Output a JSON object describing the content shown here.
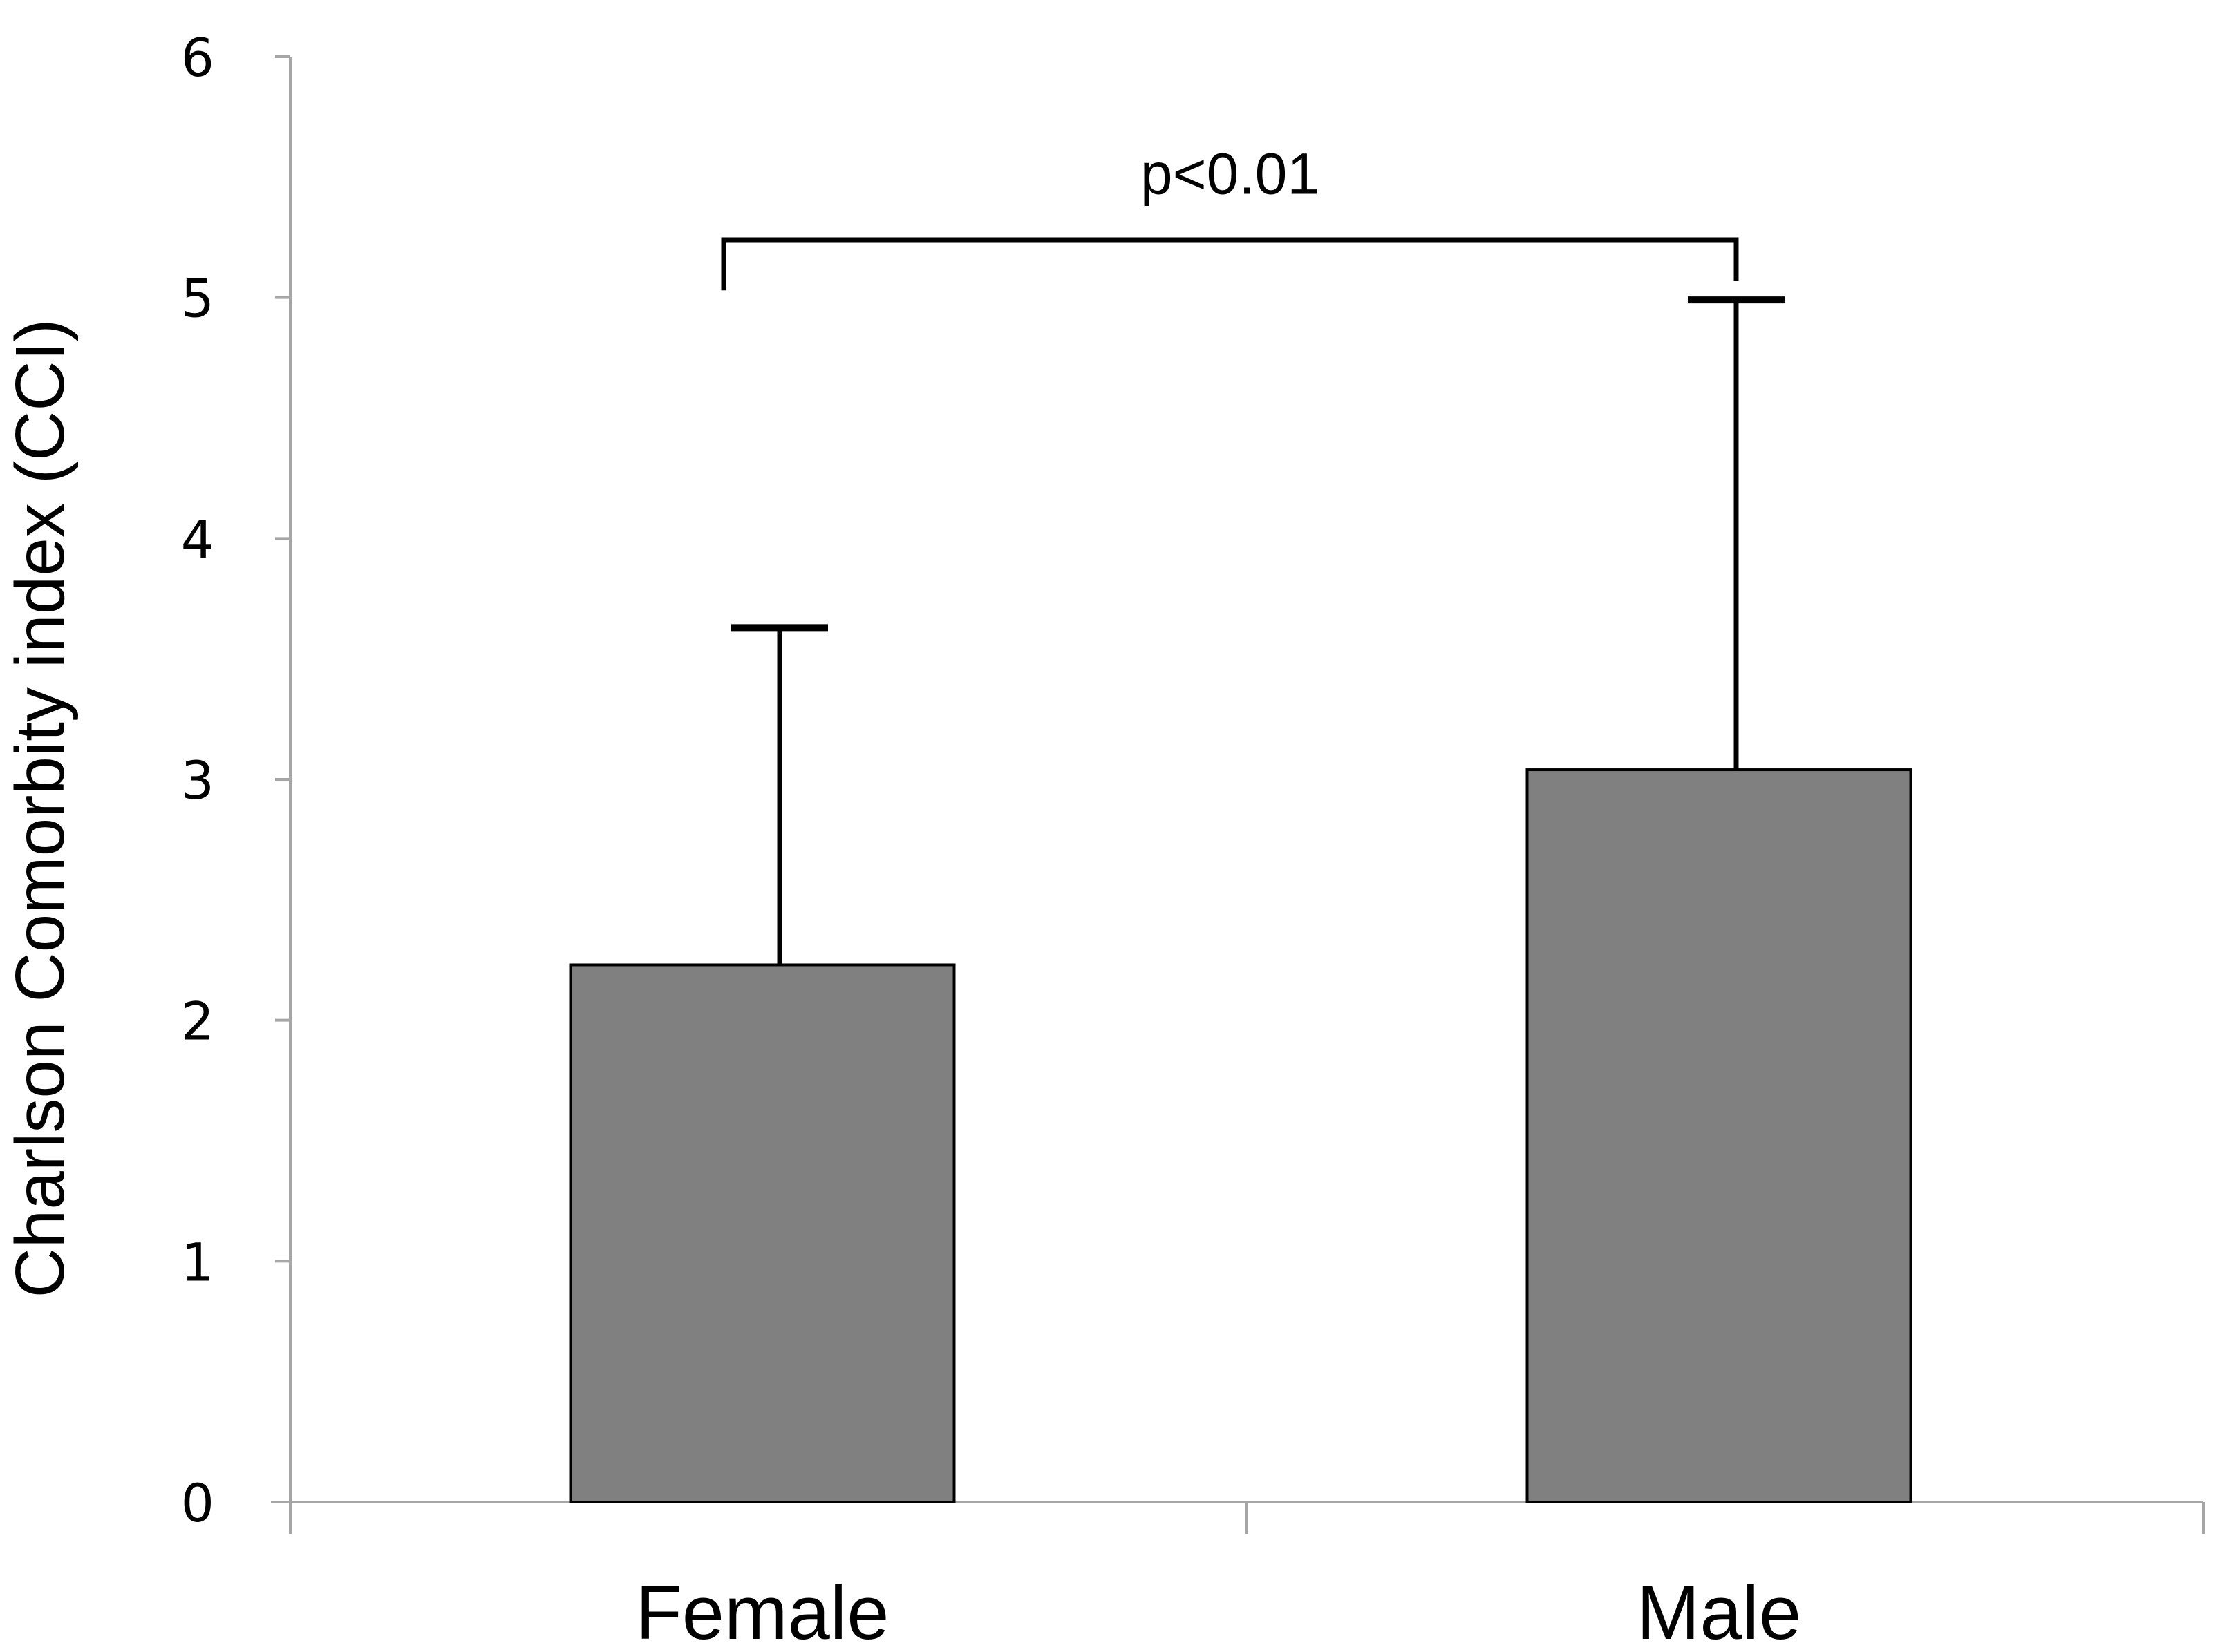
{
  "chart_data": {
    "type": "bar",
    "title": "",
    "xlabel": "",
    "ylabel": "Charlson Comorbity index (CCI)",
    "categories": [
      "Female",
      "Male"
    ],
    "values": [
      2.23,
      3.04
    ],
    "error_upper": [
      3.63,
      4.99
    ],
    "ylim": [
      0,
      6
    ],
    "yticks": [
      "0",
      "1",
      "2",
      "3",
      "4",
      "5",
      "6"
    ],
    "grid": false,
    "legend": "none",
    "bar_color": "#808080",
    "annotation": {
      "text": "p<0.01",
      "between": [
        "Female",
        "Male"
      ]
    }
  }
}
